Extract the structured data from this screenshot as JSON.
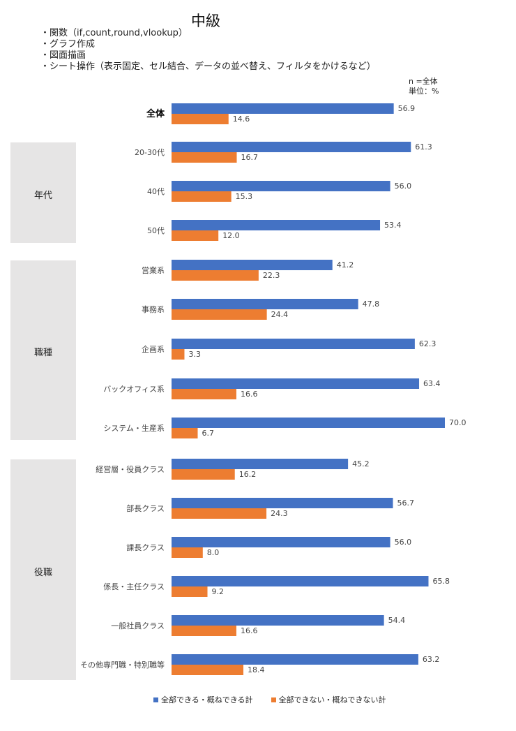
{
  "title": "中級",
  "topics": [
    "・関数（if,count,round,vlookup）",
    "・グラフ作成",
    "・図面描画",
    "・シート操作（表示固定、セル結合、データの並べ替え、フィルタをかけるなど）"
  ],
  "note_n": "n =全体",
  "note_unit": "単位：%",
  "groups": [
    {
      "label": "年代"
    },
    {
      "label": "職種"
    },
    {
      "label": "役職"
    }
  ],
  "chart_data": {
    "type": "bar",
    "orientation": "horizontal",
    "categories": [
      "全体",
      "20-30代",
      "40代",
      "50代",
      "営業系",
      "事務系",
      "企画系",
      "バックオフィス系",
      "システム・生産系",
      "経営層・役員クラス",
      "部長クラス",
      "課長クラス",
      "係長・主任クラス",
      "一般社員クラス",
      "その他専門職・特別職等"
    ],
    "category_groups": [
      "",
      "年代",
      "年代",
      "年代",
      "職種",
      "職種",
      "職種",
      "職種",
      "職種",
      "役職",
      "役職",
      "役職",
      "役職",
      "役職",
      "役職"
    ],
    "series": [
      {
        "name": "全部できる・概ねできる計",
        "color": "#4472c4",
        "values": [
          56.9,
          61.3,
          56.0,
          53.4,
          41.2,
          47.8,
          62.3,
          63.4,
          70.0,
          45.2,
          56.7,
          56.0,
          65.8,
          54.4,
          63.2
        ]
      },
      {
        "name": "全部できない・概ねできない計",
        "color": "#ed7d31",
        "values": [
          14.6,
          16.7,
          15.3,
          12.0,
          22.3,
          24.4,
          3.3,
          16.6,
          6.7,
          16.2,
          24.3,
          8.0,
          9.2,
          16.6,
          18.4
        ]
      }
    ],
    "value_labels": {
      "s0": [
        "56.9",
        "61.3",
        "56.0",
        "53.4",
        "41.2",
        "47.8",
        "62.3",
        "63.4",
        "70.0",
        "45.2",
        "56.7",
        "56.0",
        "65.8",
        "54.4",
        "63.2"
      ],
      "s1": [
        "14.6",
        "16.7",
        "15.3",
        "12.0",
        "22.3",
        "24.4",
        "3.3",
        "16.6",
        "6.7",
        "16.2",
        "24.3",
        "8.0",
        "9.2",
        "16.6",
        "18.4"
      ]
    },
    "xlim": [
      0,
      70
    ],
    "unit": "%"
  }
}
